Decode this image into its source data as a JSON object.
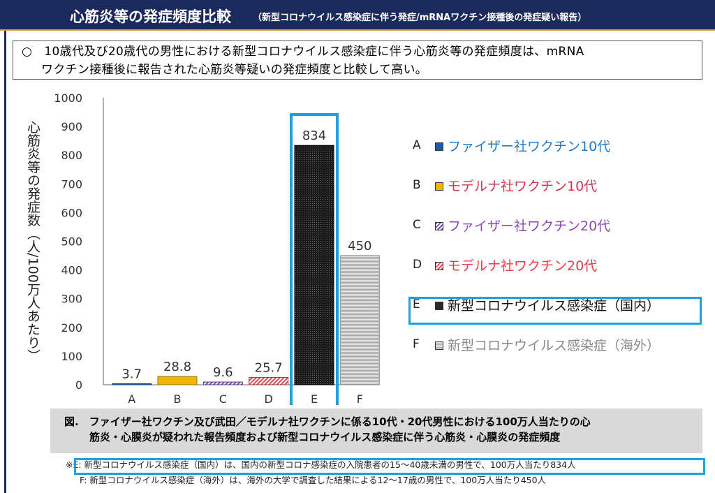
{
  "header": {
    "title": "心筋炎等の発症頻度比較",
    "subtitle": "（新型コロナウイルス感染症に伴う発症/mRNAワクチン接種後の発症疑い報告）"
  },
  "summary": {
    "line1": "○　10歳代及び20歳代の男性における新型コロナウイルス感染症に伴う心筋炎等の発症頻度は、mRNA",
    "line2": "ワクチン接種後に報告された心筋炎等疑いの発症頻度と比較して高い。"
  },
  "chart_data": {
    "type": "bar",
    "ylabel": "心筋炎等の発症数（人/100万人あたり）",
    "ylim": [
      0,
      1000
    ],
    "yticks": [
      "0",
      "100",
      "200",
      "300",
      "400",
      "500",
      "600",
      "700",
      "800",
      "900",
      "1000"
    ],
    "categories": [
      "A",
      "B",
      "C",
      "D",
      "E",
      "F"
    ],
    "values": [
      3.7,
      28.8,
      9.6,
      25.7,
      834,
      450
    ],
    "value_labels": [
      "3.7",
      "28.8",
      "9.6",
      "25.7",
      "834",
      "450"
    ],
    "colors": [
      "#1f5aa8",
      "#f2b500",
      "#7a4eb6",
      "#e84a55",
      "#2a2a2a",
      "#c8c8c8"
    ],
    "highlight": "E",
    "legend": [
      {
        "letter": "A",
        "label": "ファイザー社ワクチン10代",
        "color": "#1f7ac4"
      },
      {
        "letter": "B",
        "label": "モデルナ社ワクチン10代",
        "color": "#d0344f"
      },
      {
        "letter": "C",
        "label": "ファイザー社ワクチン20代",
        "color": "#8a4ab8"
      },
      {
        "letter": "D",
        "label": "モデルナ社ワクチン20代",
        "color": "#e83a4a"
      },
      {
        "letter": "E",
        "label": "新型コロナウイルス感染症（国内）",
        "color": "#111111"
      },
      {
        "letter": "F",
        "label": "新型コロナウイルス感染症（海外）",
        "color": "#888888"
      }
    ]
  },
  "caption": {
    "line1": "図.　ファイザー社ワクチン及び武田／モデルナ社ワクチンに係る10代・20代男性における100万人当たりの心",
    "line2": "筋炎・心膜炎が疑われた報告頻度および新型コロナウイルス感染症に伴う心筋炎・心膜炎の発症頻度"
  },
  "notes": {
    "line1": "※E: 新型コロナウイルス感染症（国内）は、国内の新型コロナ感染症の入院患者の15～40歳未満の男性で、100万人当たり834人",
    "line2": "F: 新型コロナウイルス感染症（海外）は、海外の大学で調査した結果による12～17歳の男性で、100万人当たり450人"
  }
}
